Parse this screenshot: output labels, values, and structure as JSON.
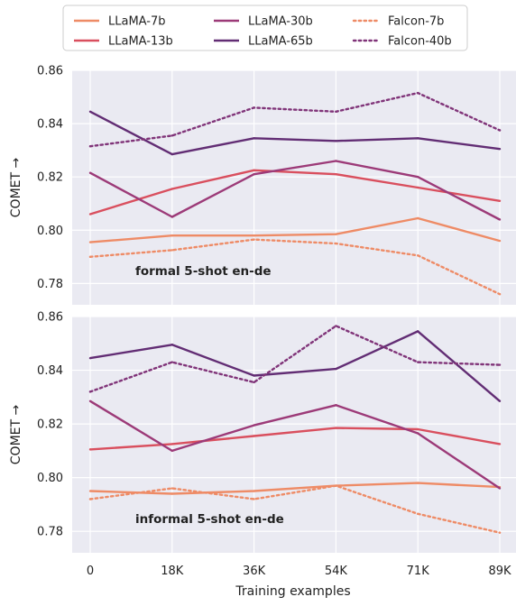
{
  "chart_data": {
    "type": "line",
    "x": [
      "0",
      "18K",
      "36K",
      "54K",
      "71K",
      "89K"
    ],
    "xlabel": "Training examples",
    "legend": {
      "placement": "top",
      "entries": [
        "LLaMA-7b",
        "LLaMA-13b",
        "LLaMA-30b",
        "LLaMA-65b",
        "Falcon-7b",
        "Falcon-40b"
      ]
    },
    "styles": {
      "LLaMA-7b": {
        "color": "#ee8b66",
        "dash": "solid"
      },
      "LLaMA-13b": {
        "color": "#d94f5e",
        "dash": "solid"
      },
      "LLaMA-30b": {
        "color": "#9c3a78",
        "dash": "solid"
      },
      "LLaMA-65b": {
        "color": "#622d74",
        "dash": "solid"
      },
      "Falcon-7b": {
        "color": "#ee8b66",
        "dash": "dotted"
      },
      "Falcon-40b": {
        "color": "#803479",
        "dash": "dotted"
      }
    },
    "panels": [
      {
        "annotation": "formal 5-shot en-de",
        "ylabel": "COMET →",
        "ylim": [
          0.772,
          0.86
        ],
        "yticks": [
          "0.78",
          "0.80",
          "0.82",
          "0.84",
          "0.86"
        ],
        "grid": true,
        "series": [
          {
            "name": "LLaMA-7b",
            "values": [
              0.7955,
              0.798,
              0.798,
              0.7985,
              0.8045,
              0.796
            ]
          },
          {
            "name": "LLaMA-13b",
            "values": [
              0.806,
              0.8155,
              0.8225,
              0.821,
              0.816,
              0.811
            ]
          },
          {
            "name": "LLaMA-30b",
            "values": [
              0.8215,
              0.805,
              0.821,
              0.826,
              0.82,
              0.804
            ]
          },
          {
            "name": "LLaMA-65b",
            "values": [
              0.8445,
              0.8285,
              0.8345,
              0.8335,
              0.8345,
              0.8305
            ]
          },
          {
            "name": "Falcon-7b",
            "values": [
              0.79,
              0.7925,
              0.7965,
              0.795,
              0.7905,
              0.776
            ]
          },
          {
            "name": "Falcon-40b",
            "values": [
              0.8315,
              0.8355,
              0.846,
              0.8445,
              0.8515,
              0.8375
            ]
          }
        ]
      },
      {
        "annotation": "informal 5-shot en-de",
        "ylabel": "COMET →",
        "ylim": [
          0.772,
          0.86
        ],
        "yticks": [
          "0.78",
          "0.80",
          "0.82",
          "0.84",
          "0.86"
        ],
        "grid": true,
        "series": [
          {
            "name": "LLaMA-7b",
            "values": [
              0.795,
              0.794,
              0.795,
              0.797,
              0.798,
              0.7965
            ]
          },
          {
            "name": "LLaMA-13b",
            "values": [
              0.8105,
              0.8125,
              0.8155,
              0.8185,
              0.818,
              0.8125
            ]
          },
          {
            "name": "LLaMA-30b",
            "values": [
              0.8285,
              0.81,
              0.8195,
              0.827,
              0.8165,
              0.796
            ]
          },
          {
            "name": "LLaMA-65b",
            "values": [
              0.8445,
              0.8495,
              0.838,
              0.8405,
              0.8545,
              0.8285
            ]
          },
          {
            "name": "Falcon-7b",
            "values": [
              0.792,
              0.796,
              0.792,
              0.797,
              0.7865,
              0.7795
            ]
          },
          {
            "name": "Falcon-40b",
            "values": [
              0.832,
              0.843,
              0.8355,
              0.8565,
              0.843,
              0.842
            ]
          }
        ]
      }
    ]
  }
}
